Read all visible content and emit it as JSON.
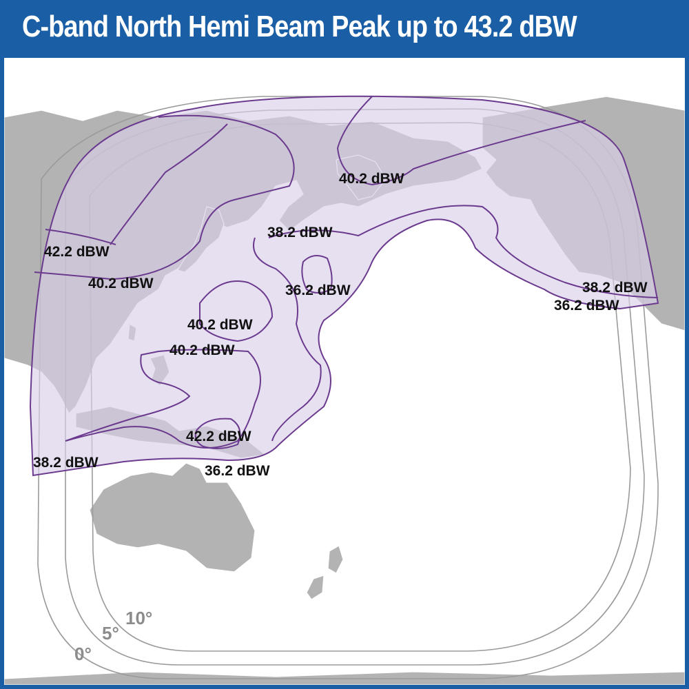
{
  "title": "C-band North Hemi Beam Peak up to 43.2 dBW",
  "colors": {
    "frame_blue": "#1a5fa6",
    "land_gray": "#b3b3b3",
    "coverage_fill": "#e6dff0",
    "contour_purple": "#6b3a8e",
    "elevation_gray": "#9a9a9a"
  },
  "contour_labels": [
    {
      "id": "label-42-2-west",
      "text": "42.2 dBW"
    },
    {
      "id": "label-40-2-west",
      "text": "40.2 dBW"
    },
    {
      "id": "label-40-2-north",
      "text": "40.2 dBW"
    },
    {
      "id": "label-38-2-north",
      "text": "38.2 dBW"
    },
    {
      "id": "label-36-2-north",
      "text": "36.2 dBW"
    },
    {
      "id": "label-40-2-center",
      "text": "40.2 dBW"
    },
    {
      "id": "label-40-2-south",
      "text": "40.2 dBW"
    },
    {
      "id": "label-42-2-south",
      "text": "42.2 dBW"
    },
    {
      "id": "label-38-2-southwest",
      "text": "38.2 dBW"
    },
    {
      "id": "label-36-2-south",
      "text": "36.2 dBW"
    },
    {
      "id": "label-38-2-east",
      "text": "38.2 dBW"
    },
    {
      "id": "label-36-2-east",
      "text": "36.2 dBW"
    }
  ],
  "elevation_labels": [
    {
      "id": "elev-0",
      "text": "0°"
    },
    {
      "id": "elev-5",
      "text": "5°"
    },
    {
      "id": "elev-10",
      "text": "10°"
    }
  ]
}
